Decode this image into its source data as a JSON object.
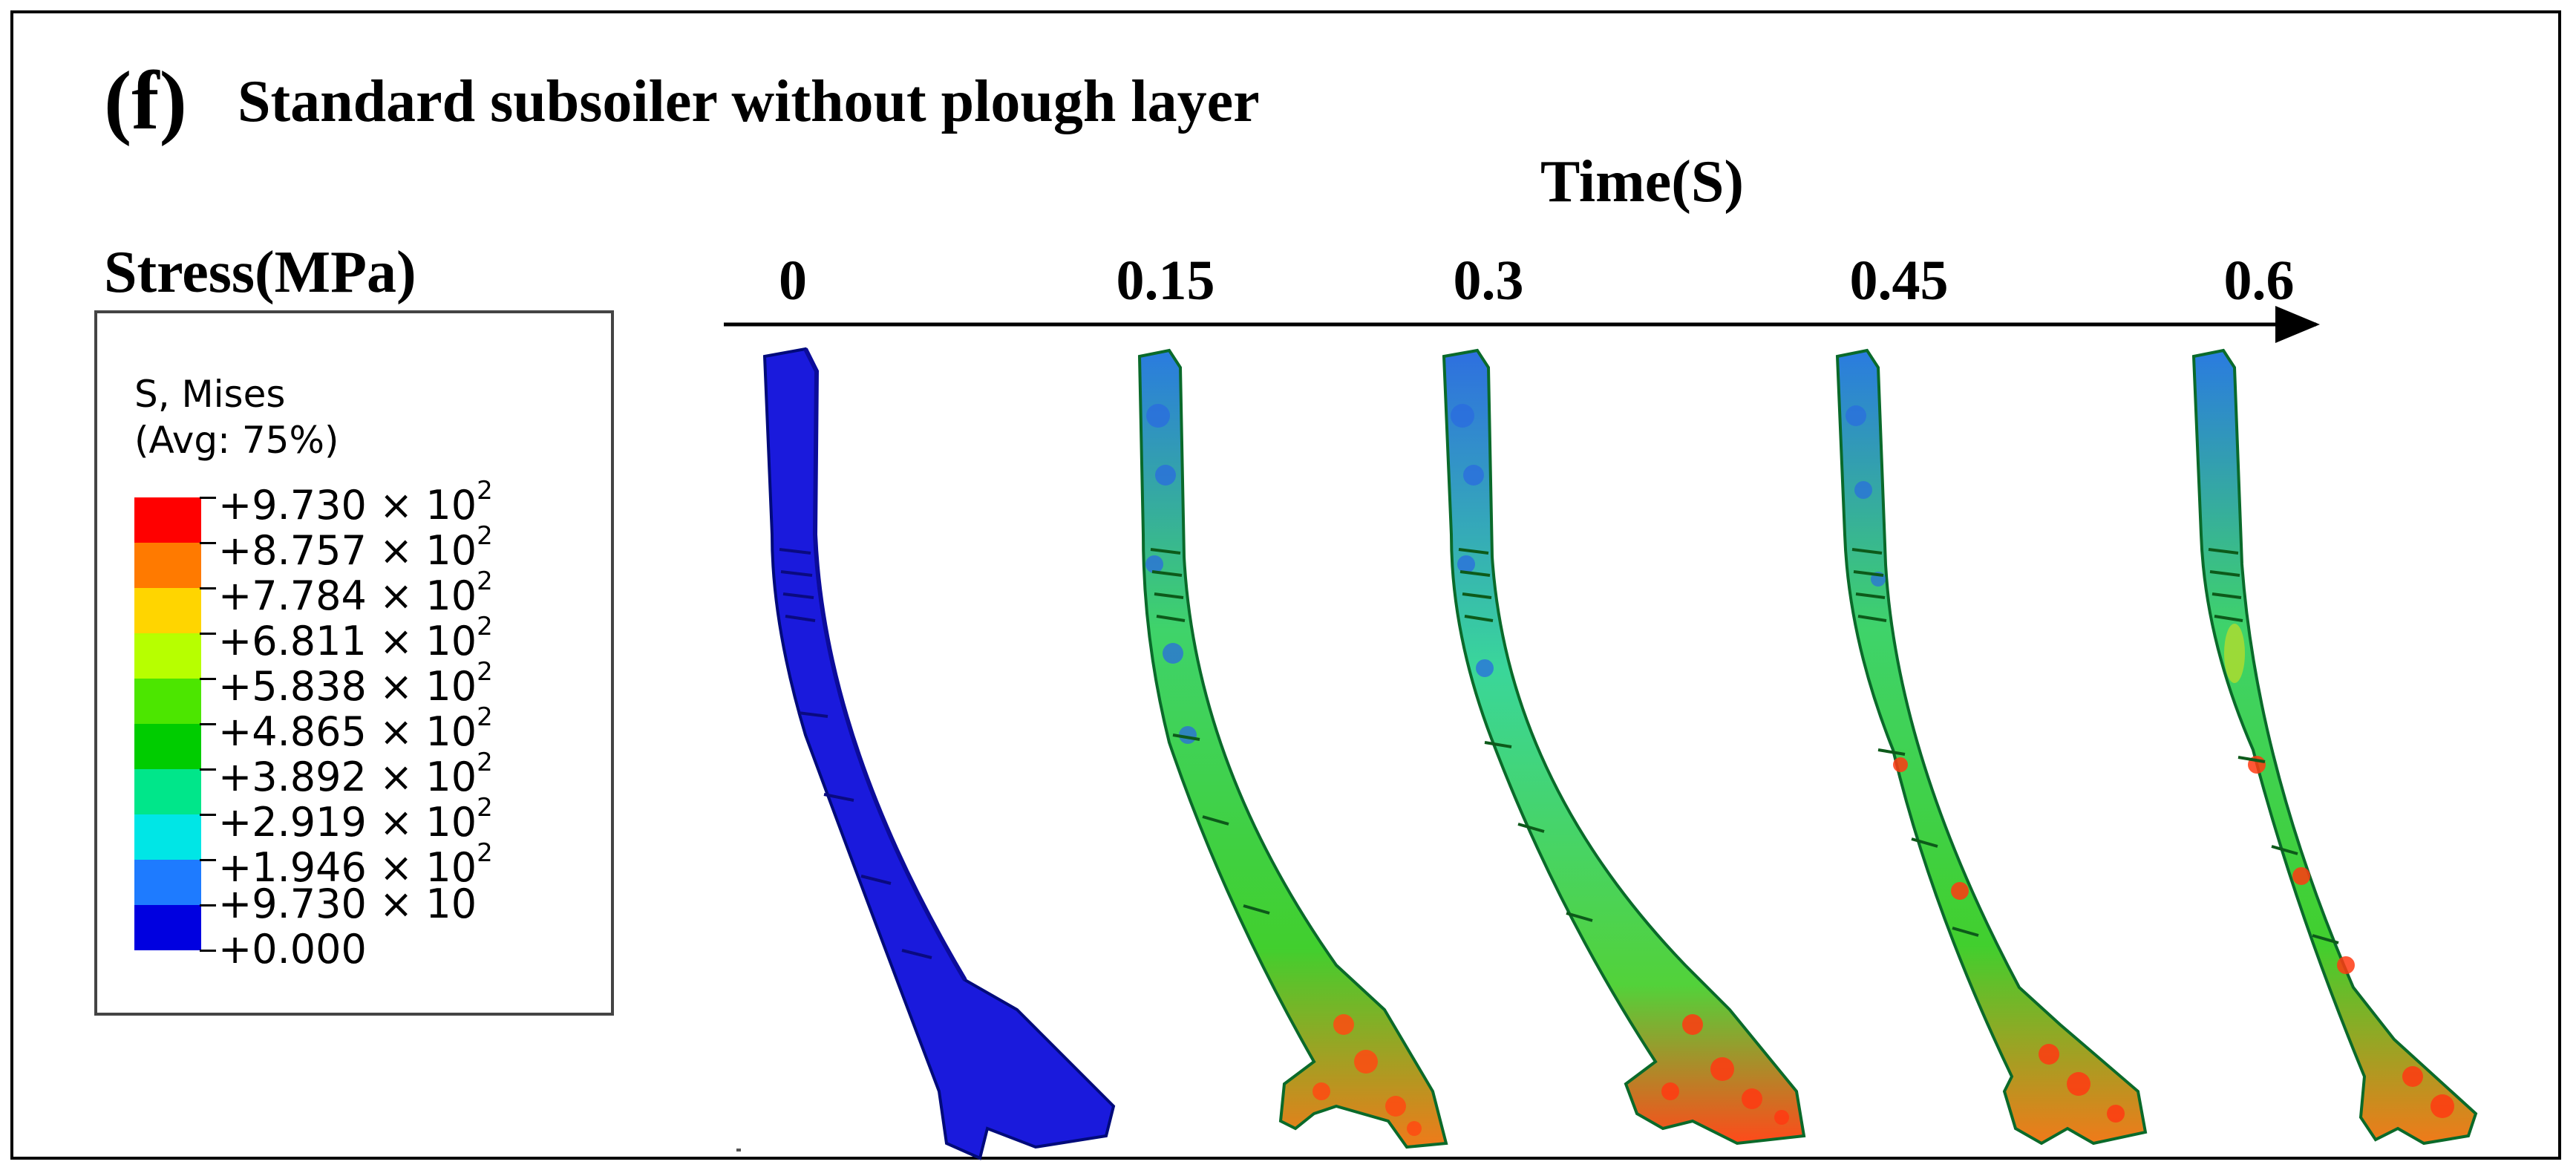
{
  "panel": {
    "label": "(f)",
    "title": "Standard subsoiler without plough layer"
  },
  "time_axis": {
    "title": "Time(S)",
    "ticks": [
      "0",
      "0.15",
      "0.3",
      "0.45",
      "0.6"
    ]
  },
  "legend": {
    "title": "Stress(MPa)",
    "variable": "S, Mises",
    "averaging": "(Avg: 75%)",
    "levels": [
      {
        "mantissa": "+9.730",
        "exp_base": " × 10",
        "exp": "2"
      },
      {
        "mantissa": "+8.757",
        "exp_base": " × 10",
        "exp": "2"
      },
      {
        "mantissa": "+7.784",
        "exp_base": " × 10",
        "exp": "2"
      },
      {
        "mantissa": "+6.811",
        "exp_base": " × 10",
        "exp": "2"
      },
      {
        "mantissa": "+5.838",
        "exp_base": " × 10",
        "exp": "2"
      },
      {
        "mantissa": "+4.865",
        "exp_base": " × 10",
        "exp": "2"
      },
      {
        "mantissa": "+3.892",
        "exp_base": " × 10",
        "exp": "2"
      },
      {
        "mantissa": "+2.919",
        "exp_base": " × 10",
        "exp": "2"
      },
      {
        "mantissa": "+1.946",
        "exp_base": " × 10",
        "exp": "2"
      },
      {
        "mantissa": "+9.730",
        "exp_base": " × 10",
        "exp": ""
      },
      {
        "mantissa": "+0.000",
        "exp_base": "",
        "exp": ""
      }
    ],
    "colors": [
      "#ff0000",
      "#ff7a00",
      "#ffd500",
      "#b7ff00",
      "#4ce600",
      "#00cc00",
      "#00e68a",
      "#00e6e6",
      "#1e7bff",
      "#0000e0"
    ]
  },
  "snapshots": [
    {
      "time": "0",
      "dominant_color": "#1a1adc"
    },
    {
      "time": "0.15",
      "dominant_color": "#2ecf4a"
    },
    {
      "time": "0.3",
      "dominant_color": "#2ecf4a"
    },
    {
      "time": "0.45",
      "dominant_color": "#2ecf4a"
    },
    {
      "time": "0.6",
      "dominant_color": "#2ecf4a"
    }
  ]
}
